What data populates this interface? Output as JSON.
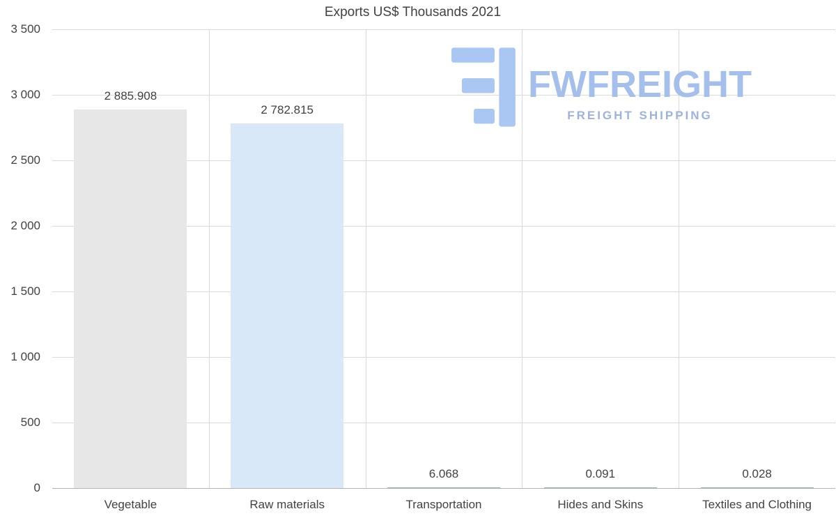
{
  "chart_data": {
    "type": "bar",
    "title": "Exports US$ Thousands 2021",
    "categories": [
      "Vegetable",
      "Raw materials",
      "Transportation",
      "Hides and Skins",
      "Textiles and Clothing"
    ],
    "values": [
      2885.908,
      2782.815,
      6.068,
      0.091,
      0.028
    ],
    "value_labels": [
      "2 885.908",
      "2 782.815",
      "6.068",
      "0.091",
      "0.028"
    ],
    "bar_colors": [
      "#e7e7e7",
      "#d9e8f8",
      "#8fb3bf",
      "#8fb3bf",
      "#8fb3bf"
    ],
    "ylim": [
      0,
      3500
    ],
    "yticks": [
      0,
      500,
      1000,
      1500,
      2000,
      2500,
      3000,
      3500
    ],
    "ytick_labels": [
      "0",
      "500",
      "1 000",
      "1 500",
      "2 000",
      "2 500",
      "3 000",
      "3 500"
    ],
    "grid": true,
    "legend": false,
    "xlabel": "",
    "ylabel": "",
    "grid_color": "#dadada",
    "axis_color": "#b5b5b5",
    "text_color": "#424242"
  },
  "watermark": {
    "brand": "FWFREIGHT",
    "tagline": "FREIGHT SHIPPING",
    "color": "#a5bfec",
    "tagline_color": "#9db2e2",
    "icon_color": "#a9c7f2"
  }
}
